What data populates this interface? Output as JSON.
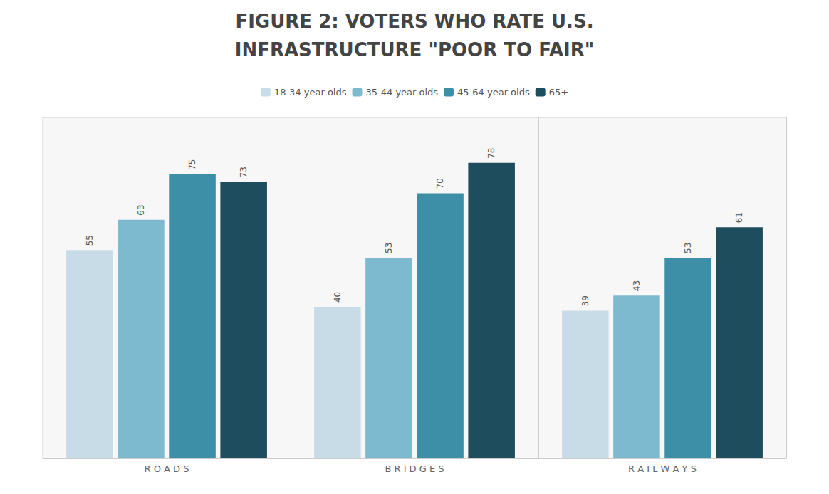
{
  "chart_data": {
    "type": "bar",
    "title": "FIGURE 2: VOTERS WHO RATE U.S.",
    "subtitle": "INFRASTRUCTURE \"POOR TO FAIR\"",
    "categories": [
      "R O A D S",
      "B R I D G E S",
      "R A I L W A Y S"
    ],
    "series": [
      {
        "name": "18-34 year-olds",
        "values": [
          55,
          40,
          39
        ],
        "color": "#c8dce8"
      },
      {
        "name": "35-44 year-olds",
        "values": [
          63,
          53,
          43
        ],
        "color": "#7dbad0"
      },
      {
        "name": "45-64 year-olds",
        "values": [
          75,
          70,
          53
        ],
        "color": "#3d8fa8"
      },
      {
        "name": "65+",
        "values": [
          73,
          78,
          61
        ],
        "color": "#1e4d5e"
      }
    ],
    "ylim": [
      0,
      90
    ],
    "yticks": [],
    "grid": false,
    "legend": "top",
    "data_labels": true,
    "tick_labels": "x"
  }
}
